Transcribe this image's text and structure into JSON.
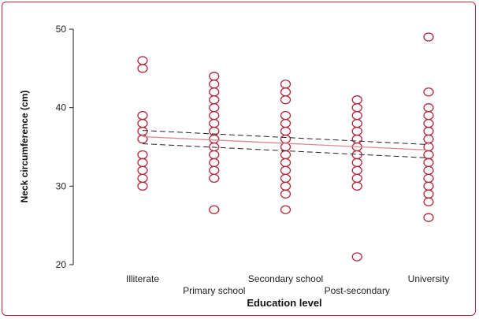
{
  "chart_data": {
    "type": "scatter",
    "xlabel": "Education level",
    "ylabel": "Neck circumference (cm)",
    "ylim": [
      20,
      50
    ],
    "yticks": [
      20,
      30,
      40,
      50
    ],
    "categories": [
      "Illiterate",
      "Primary school",
      "Secondary school",
      "Post-secondary",
      "University"
    ],
    "points": [
      {
        "category": "Illiterate",
        "values": [
          30,
          31,
          32,
          33,
          34,
          36,
          37,
          38,
          39,
          45,
          46
        ]
      },
      {
        "category": "Primary school",
        "values": [
          27,
          31,
          32,
          33,
          34,
          35,
          36,
          37,
          38,
          39,
          40,
          41,
          42,
          43,
          44
        ]
      },
      {
        "category": "Secondary school",
        "values": [
          27,
          29,
          30,
          31,
          32,
          33,
          34,
          35,
          36,
          37,
          38,
          39,
          41,
          42,
          43
        ]
      },
      {
        "category": "Post-secondary",
        "values": [
          21,
          30,
          31,
          32,
          33,
          34,
          35,
          36,
          37,
          38,
          39,
          40,
          41
        ]
      },
      {
        "category": "University",
        "values": [
          26,
          28,
          29,
          30,
          31,
          32,
          33,
          34,
          35,
          36,
          37,
          38,
          39,
          40,
          42,
          49
        ]
      }
    ],
    "fit": {
      "start": 36.3,
      "end": 34.6
    },
    "ci_upper": {
      "start": 37.1,
      "end": 35.3
    },
    "ci_lower": {
      "start": 35.4,
      "end": 33.6
    },
    "colors": {
      "marker": "#b0283c",
      "fit": "#d98a96",
      "ci": "#222222",
      "axis": "#222222"
    }
  }
}
